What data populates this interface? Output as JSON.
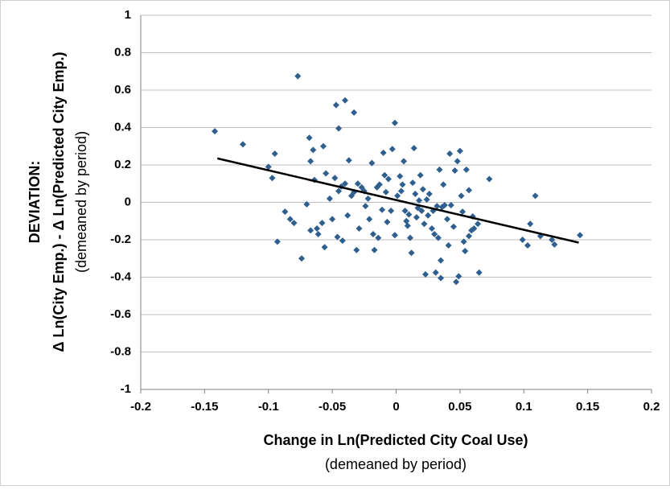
{
  "chart_data": {
    "type": "scatter",
    "x": [
      -0.142,
      -0.12,
      -0.1,
      -0.095,
      -0.097,
      -0.093,
      -0.087,
      -0.083,
      -0.08,
      -0.077,
      -0.074,
      -0.07,
      -0.068,
      -0.067,
      -0.065,
      -0.067,
      -0.064,
      -0.062,
      -0.061,
      -0.058,
      -0.057,
      -0.056,
      -0.055,
      -0.052,
      -0.05,
      -0.048,
      -0.047,
      -0.045,
      -0.046,
      -0.045,
      -0.043,
      -0.042,
      -0.04,
      -0.04,
      -0.038,
      -0.037,
      -0.035,
      -0.033,
      -0.033,
      -0.031,
      -0.03,
      -0.029,
      -0.027,
      -0.025,
      -0.024,
      -0.022,
      -0.021,
      -0.019,
      -0.018,
      -0.017,
      -0.015,
      -0.014,
      -0.013,
      -0.011,
      -0.01,
      -0.009,
      -0.008,
      -0.007,
      -0.006,
      -0.004,
      -0.003,
      -0.001,
      -0.001,
      0.001,
      0.003,
      0.004,
      0.005,
      0.006,
      0.007,
      0.008,
      0.009,
      0.01,
      0.011,
      0.012,
      0.013,
      0.014,
      0.015,
      0.016,
      0.017,
      0.018,
      0.019,
      0.02,
      0.021,
      0.022,
      0.023,
      0.024,
      0.025,
      0.026,
      0.028,
      0.029,
      0.03,
      0.031,
      0.032,
      0.033,
      0.034,
      0.035,
      0.035,
      0.036,
      0.037,
      0.038,
      0.04,
      0.041,
      0.042,
      0.043,
      0.045,
      0.046,
      0.047,
      0.048,
      0.049,
      0.05,
      0.051,
      0.052,
      0.053,
      0.054,
      0.055,
      0.057,
      0.057,
      0.059,
      0.06,
      0.061,
      0.064,
      0.065,
      0.073,
      0.099,
      0.103,
      0.105,
      0.109,
      0.113,
      0.122,
      0.124,
      0.144
    ],
    "values": [
      0.38,
      0.31,
      0.19,
      0.26,
      0.13,
      -0.21,
      -0.05,
      -0.09,
      -0.11,
      0.675,
      -0.3,
      -0.01,
      0.345,
      0.22,
      0.28,
      -0.15,
      0.12,
      -0.14,
      -0.17,
      -0.11,
      0.3,
      -0.24,
      0.155,
      0.02,
      -0.09,
      0.13,
      0.52,
      0.395,
      -0.185,
      0.06,
      0.085,
      -0.205,
      0.545,
      0.1,
      -0.07,
      0.225,
      0.035,
      0.48,
      0.055,
      -0.255,
      0.1,
      -0.14,
      0.08,
      0.06,
      -0.02,
      0.02,
      -0.09,
      0.21,
      -0.17,
      -0.255,
      0.08,
      -0.19,
      0.095,
      -0.04,
      0.265,
      0.145,
      0.055,
      -0.105,
      0.125,
      -0.045,
      0.285,
      -0.175,
      0.425,
      0.035,
      0.14,
      0.06,
      0.095,
      0.22,
      -0.045,
      -0.1,
      -0.125,
      -0.065,
      -0.19,
      -0.27,
      0.105,
      0.29,
      0.045,
      -0.08,
      -0.03,
      0.01,
      0.145,
      -0.045,
      0.07,
      -0.115,
      -0.385,
      0.015,
      -0.07,
      0.045,
      -0.14,
      -0.045,
      -0.17,
      -0.375,
      -0.02,
      -0.19,
      0.175,
      -0.31,
      -0.405,
      -0.025,
      0.095,
      -0.015,
      -0.09,
      -0.23,
      0.26,
      -0.015,
      -0.13,
      0.17,
      -0.425,
      0.22,
      -0.395,
      0.275,
      0.035,
      -0.05,
      -0.21,
      -0.26,
      0.175,
      -0.18,
      0.065,
      -0.15,
      -0.075,
      -0.14,
      -0.115,
      -0.375,
      0.125,
      -0.2,
      -0.23,
      -0.115,
      0.035,
      -0.18,
      -0.2,
      -0.225,
      -0.175
    ],
    "color": "#2f5f8f",
    "trendline": {
      "x": [
        -0.14,
        0.143
      ],
      "values": [
        0.235,
        -0.215
      ],
      "color": "#000000"
    },
    "xlim": [
      -0.2,
      0.2
    ],
    "xticks": [
      -0.2,
      -0.15,
      -0.1,
      -0.05,
      0,
      0.05,
      0.1,
      0.15,
      0.2
    ],
    "ylim": [
      -1,
      1
    ],
    "yticks": [
      -1,
      -0.8,
      -0.6,
      -0.4,
      -0.2,
      0,
      0.2,
      0.4,
      0.6,
      0.8,
      1
    ],
    "grid": true,
    "xlabel": [
      "Change in Ln(Predicted City Coal Use)",
      "(demeaned by period)"
    ],
    "ylabel": [
      "DEVIATION:",
      "Δ Ln(City Emp.) - Δ Ln(Predicted City Emp.)",
      "(demeaned by period)"
    ]
  }
}
